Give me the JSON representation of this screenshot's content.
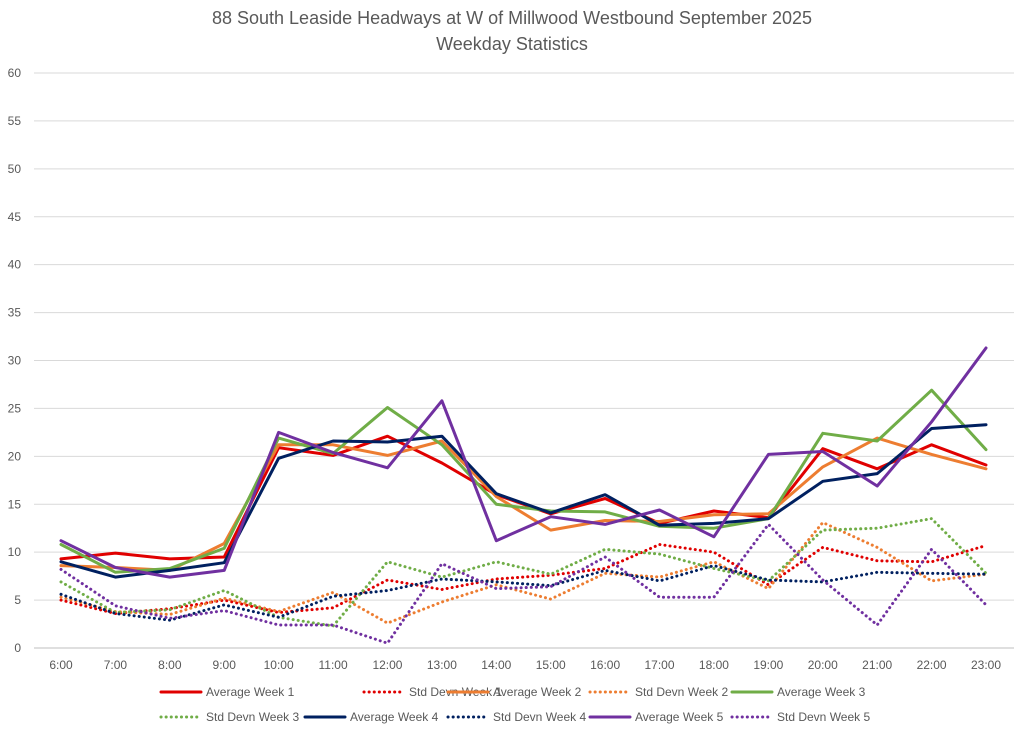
{
  "chart_data": {
    "type": "line",
    "title": "88 South Leaside Headways at W of Millwood Westbound September 2025",
    "subtitle": "Weekday Statistics",
    "xlabel": "",
    "ylabel": "",
    "ylim": [
      0,
      60
    ],
    "yticks": [
      0,
      5,
      10,
      15,
      20,
      25,
      30,
      35,
      40,
      45,
      50,
      55,
      60
    ],
    "grid": true,
    "legend_position": "bottom",
    "categories": [
      "6:00",
      "7:00",
      "8:00",
      "9:00",
      "10:00",
      "11:00",
      "12:00",
      "13:00",
      "14:00",
      "15:00",
      "16:00",
      "17:00",
      "18:00",
      "19:00",
      "20:00",
      "21:00",
      "22:00",
      "23:00"
    ],
    "series": [
      {
        "name": "Average Week 1",
        "style": "solid",
        "color": "#e00000",
        "values": [
          9.3,
          9.9,
          9.3,
          9.5,
          20.9,
          20.1,
          22.1,
          19.3,
          16.0,
          14.0,
          15.6,
          13.0,
          14.3,
          13.6,
          20.8,
          18.7,
          21.2,
          19.1
        ]
      },
      {
        "name": "Std Devn Week 1",
        "style": "dotted",
        "color": "#e00000",
        "values": [
          5.0,
          3.6,
          4.1,
          5.0,
          3.7,
          4.2,
          7.1,
          6.1,
          7.2,
          7.6,
          8.3,
          10.8,
          10.0,
          6.6,
          10.5,
          9.1,
          9.0,
          10.7
        ]
      },
      {
        "name": "Average Week 2",
        "style": "solid",
        "color": "#ed7d31",
        "values": [
          8.6,
          8.4,
          8.1,
          10.9,
          21.2,
          21.2,
          20.1,
          21.6,
          15.8,
          12.3,
          13.3,
          13.2,
          13.9,
          14.0,
          18.9,
          21.9,
          20.2,
          18.7
        ]
      },
      {
        "name": "Std Devn Week 2",
        "style": "dotted",
        "color": "#ed7d31",
        "values": [
          5.3,
          3.8,
          3.5,
          5.2,
          3.8,
          5.8,
          2.6,
          4.8,
          6.6,
          5.1,
          7.8,
          7.4,
          9.0,
          6.2,
          13.1,
          10.5,
          7.0,
          7.7
        ]
      },
      {
        "name": "Average Week 3",
        "style": "solid",
        "color": "#70ad47",
        "values": [
          10.8,
          7.9,
          8.3,
          10.4,
          21.9,
          20.3,
          25.1,
          21.2,
          15.0,
          14.3,
          14.2,
          12.7,
          12.5,
          13.5,
          22.4,
          21.6,
          26.9,
          20.7
        ]
      },
      {
        "name": "Std Devn Week 3",
        "style": "dotted",
        "color": "#70ad47",
        "values": [
          6.9,
          3.7,
          4.0,
          6.0,
          3.2,
          2.3,
          9.0,
          7.4,
          9.0,
          7.7,
          10.3,
          9.8,
          8.3,
          7.0,
          12.3,
          12.5,
          13.5,
          7.8
        ]
      },
      {
        "name": "Average Week 4",
        "style": "solid",
        "color": "#002060",
        "values": [
          9.0,
          7.4,
          8.1,
          8.9,
          19.8,
          21.6,
          21.5,
          22.1,
          16.1,
          14.1,
          16.0,
          12.8,
          13.0,
          13.5,
          17.4,
          18.2,
          22.9,
          23.3
        ]
      },
      {
        "name": "Std Devn Week 4",
        "style": "dotted",
        "color": "#002060",
        "values": [
          5.6,
          3.6,
          2.9,
          4.5,
          3.2,
          5.4,
          6.0,
          7.2,
          6.9,
          6.5,
          8.1,
          7.0,
          8.6,
          7.1,
          6.9,
          7.9,
          7.8,
          7.7
        ]
      },
      {
        "name": "Average Week 5",
        "style": "solid",
        "color": "#7030a0",
        "values": [
          11.2,
          8.4,
          7.4,
          8.1,
          22.5,
          20.4,
          18.8,
          25.8,
          11.2,
          13.7,
          12.9,
          14.4,
          11.6,
          20.2,
          20.5,
          16.9,
          23.6,
          31.3
        ]
      },
      {
        "name": "Std Devn Week 5",
        "style": "dotted",
        "color": "#7030a0",
        "values": [
          8.2,
          4.4,
          3.1,
          3.9,
          2.4,
          2.4,
          0.5,
          8.8,
          6.2,
          6.4,
          9.5,
          5.3,
          5.3,
          12.9,
          7.1,
          2.4,
          10.3,
          4.5
        ]
      }
    ]
  },
  "colors": {
    "grid": "#d9d9d9",
    "axis": "#bfbfbf",
    "text": "#595959"
  }
}
